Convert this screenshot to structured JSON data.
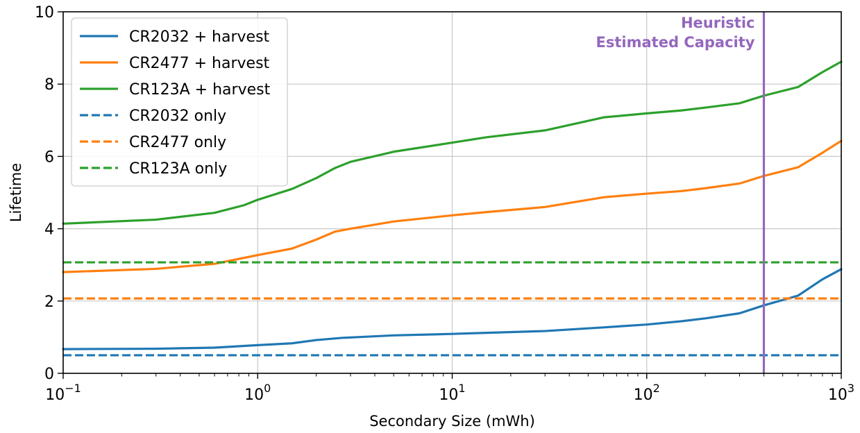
{
  "chart_data": {
    "type": "line",
    "xlabel": "Secondary Size (mWh)",
    "ylabel": "Lifetime",
    "xscale": "log",
    "xlim": [
      0.1,
      1000
    ],
    "ylim": [
      0,
      10
    ],
    "grid": true,
    "legend_position": "top-left",
    "x_ticks": [
      {
        "base": "10",
        "exp": "−1"
      },
      {
        "base": "10",
        "exp": "0"
      },
      {
        "base": "10",
        "exp": "1"
      },
      {
        "base": "10",
        "exp": "2"
      },
      {
        "base": "10",
        "exp": "3"
      }
    ],
    "y_ticks": [
      "0",
      "2",
      "4",
      "6",
      "8",
      "10"
    ],
    "series": [
      {
        "name": "CR2032 + harvest",
        "color": "#1f77b4",
        "dash": "solid",
        "x": [
          0.1,
          0.3,
          0.6,
          1,
          1.5,
          2,
          2.7,
          5,
          10,
          15,
          30,
          60,
          100,
          150,
          200,
          300,
          400,
          600,
          800,
          1000
        ],
        "y": [
          0.67,
          0.68,
          0.71,
          0.78,
          0.83,
          0.92,
          0.98,
          1.05,
          1.09,
          1.12,
          1.17,
          1.27,
          1.35,
          1.44,
          1.52,
          1.66,
          1.88,
          2.15,
          2.6,
          2.88
        ]
      },
      {
        "name": "CR2477 + harvest",
        "color": "#ff7f0e",
        "dash": "solid",
        "x": [
          0.1,
          0.3,
          0.6,
          1,
          1.5,
          2,
          2.5,
          3,
          5,
          10,
          15,
          30,
          60,
          100,
          150,
          200,
          300,
          400,
          600,
          800,
          1000
        ],
        "y": [
          2.8,
          2.89,
          3.03,
          3.27,
          3.45,
          3.7,
          3.92,
          4.0,
          4.2,
          4.37,
          4.46,
          4.6,
          4.87,
          4.97,
          5.04,
          5.12,
          5.25,
          5.46,
          5.7,
          6.1,
          6.43
        ]
      },
      {
        "name": "CR123A + harvest",
        "color": "#2ca02c",
        "dash": "solid",
        "x": [
          0.1,
          0.3,
          0.6,
          0.85,
          1,
          1.5,
          2,
          2.5,
          3,
          5,
          10,
          15,
          30,
          60,
          100,
          150,
          200,
          300,
          400,
          600,
          800,
          1000
        ],
        "y": [
          4.14,
          4.25,
          4.44,
          4.65,
          4.8,
          5.1,
          5.4,
          5.68,
          5.85,
          6.13,
          6.38,
          6.53,
          6.72,
          7.08,
          7.19,
          7.27,
          7.35,
          7.47,
          7.68,
          7.92,
          8.33,
          8.62
        ]
      },
      {
        "name": "CR2032 only",
        "color": "#1f77b4",
        "dash": "dashed",
        "x": [
          0.1,
          1000
        ],
        "y": [
          0.5,
          0.5
        ]
      },
      {
        "name": "CR2477 only",
        "color": "#ff7f0e",
        "dash": "dashed",
        "x": [
          0.1,
          1000
        ],
        "y": [
          2.07,
          2.07
        ]
      },
      {
        "name": "CR123A only",
        "color": "#2ca02c",
        "dash": "dashed",
        "x": [
          0.1,
          1000
        ],
        "y": [
          3.07,
          3.07
        ]
      }
    ],
    "vline": {
      "x": 400,
      "color": "#9467bd",
      "label_line1": "Heuristic",
      "label_line2": "Estimated Capacity"
    }
  }
}
